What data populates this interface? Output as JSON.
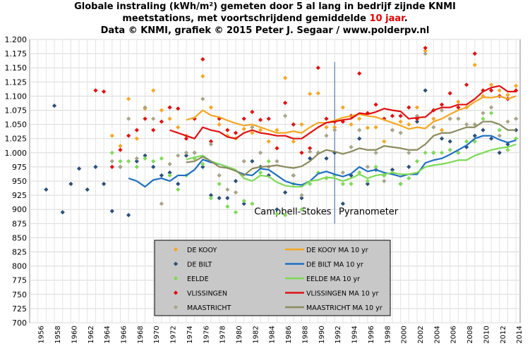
{
  "chart_data": {
    "type": "scatter",
    "title_line1": "Globale instraling (kWh/m²) gemeten door 5 al lang in bedrijf zijnde KNMI",
    "title_line2": "meetstations, met voortschrijdend gemiddelde",
    "title_line2_highlight": "10 jaar",
    "title_line2_end": ".",
    "title_line3": "Data © KNMI, grafiek © 2015 Peter J. Segaar / www.polderpv.nl",
    "xlim": [
      1955,
      2014.5
    ],
    "ylim": [
      700,
      1200
    ],
    "xticks": [
      "1956",
      "1958",
      "1960",
      "1962",
      "1964",
      "1966",
      "1968",
      "1970",
      "1972",
      "1974",
      "1976",
      "1978",
      "1980",
      "1982",
      "1984",
      "1986",
      "1988",
      "1990",
      "1992",
      "1994",
      "1996",
      "1998",
      "2000",
      "2002",
      "2004",
      "2006",
      "2008",
      "2010",
      "2012",
      "2014"
    ],
    "yticks": [
      "700",
      "725",
      "750",
      "775",
      "800",
      "825",
      "850",
      "875",
      "900",
      "925",
      "950",
      "975",
      "1.000",
      "1.025",
      "1.050",
      "1.075",
      "1.100",
      "1.125",
      "1.150",
      "1.175",
      "1.200"
    ],
    "grid": true,
    "divider_year": 1992,
    "annotations": [
      {
        "text": "Campbell-Stokes",
        "x": 1991.6,
        "y": 891
      },
      {
        "text": "Pyranometer",
        "x": 1992.5,
        "y": 891
      }
    ],
    "legend_position": "bottom-center",
    "series": [
      {
        "name": "DE KOOY",
        "kind": "points",
        "color": "#f5a623",
        "x": [
          1965,
          1966,
          1967,
          1968,
          1969,
          1970,
          1971,
          1972,
          1973,
          1974,
          1975,
          1976,
          1977,
          1978,
          1979,
          1980,
          1981,
          1982,
          1983,
          1984,
          1985,
          1986,
          1987,
          1988,
          1989,
          1990,
          1991,
          1992,
          1993,
          1994,
          1995,
          1996,
          1997,
          1998,
          1999,
          2000,
          2001,
          2002,
          2003,
          2004,
          2005,
          2006,
          2007,
          2008,
          2009,
          2010,
          2011,
          2012,
          2013,
          2014
        ],
        "y": [
          1030,
          1012,
          1095,
          1025,
          1078,
          1110,
          1075,
          1060,
          1045,
          1030,
          1060,
          1135,
          1080,
          1050,
          1030,
          1025,
          1042,
          1035,
          1040,
          1020,
          1040,
          1132,
          1020,
          1050,
          1104,
          1105,
          1045,
          1045,
          1080,
          1050,
          1060,
          1044,
          1045,
          1020,
          1040,
          1055,
          1050,
          1080,
          1180,
          1060,
          1040,
          1060,
          1090,
          1080,
          1155,
          1100,
          1120,
          1110,
          1102,
          1118
        ]
      },
      {
        "name": "DE BILT",
        "kind": "points",
        "color": "#2b4f7a",
        "x": [
          1957,
          1958,
          1959,
          1960,
          1961,
          1962,
          1963,
          1964,
          1965,
          1966,
          1967,
          1968,
          1969,
          1970,
          1971,
          1972,
          1973,
          1974,
          1975,
          1976,
          1977,
          1978,
          1979,
          1980,
          1981,
          1982,
          1983,
          1984,
          1985,
          1986,
          1987,
          1988,
          1989,
          1990,
          1991,
          1992,
          1993,
          1994,
          1995,
          1996,
          1997,
          1998,
          1999,
          2000,
          2001,
          2002,
          2003,
          2004,
          2005,
          2006,
          2007,
          2008,
          2009,
          2010,
          2011,
          2012,
          2013,
          2014
        ],
        "y": [
          935,
          1083,
          895,
          945,
          972,
          935,
          975,
          945,
          897,
          975,
          890,
          985,
          995,
          975,
          960,
          965,
          945,
          995,
          1000,
          975,
          925,
          920,
          920,
          950,
          910,
          985,
          975,
          960,
          900,
          930,
          960,
          920,
          990,
          1000,
          990,
          1000,
          910,
          960,
          1025,
          945,
          970,
          960,
          970,
          945,
          975,
          1055,
          1110,
          1000,
          1025,
          1020,
          1000,
          1010,
          1030,
          1040,
          1025,
          1000,
          1015,
          1040
        ]
      },
      {
        "name": "EELDE",
        "kind": "points",
        "color": "#7ed957",
        "x": [
          1965,
          1966,
          1967,
          1968,
          1969,
          1970,
          1971,
          1972,
          1973,
          1974,
          1975,
          1976,
          1977,
          1978,
          1979,
          1980,
          1981,
          1982,
          1983,
          1984,
          1985,
          1986,
          1987,
          1988,
          1989,
          1990,
          1991,
          1992,
          1993,
          1994,
          1995,
          1996,
          1997,
          1998,
          1999,
          2000,
          2001,
          2002,
          2003,
          2004,
          2005,
          2006,
          2007,
          2008,
          2009,
          2010,
          2011,
          2012,
          2013,
          2014
        ],
        "y": [
          1000,
          985,
          985,
          975,
          990,
          985,
          990,
          960,
          935,
          960,
          990,
          980,
          920,
          945,
          905,
          895,
          915,
          910,
          965,
          985,
          892,
          890,
          945,
          900,
          945,
          965,
          955,
          960,
          945,
          945,
          965,
          950,
          975,
          960,
          965,
          945,
          955,
          985,
          1000,
          1000,
          1000,
          1005,
          1000,
          1020,
          1020,
          1060,
          1070,
          1040,
          1005,
          1025
        ]
      },
      {
        "name": "VLISSINGEN",
        "kind": "points",
        "color": "#e01010",
        "x": [
          1963,
          1964,
          1965,
          1966,
          1967,
          1968,
          1969,
          1970,
          1971,
          1972,
          1973,
          1974,
          1975,
          1976,
          1977,
          1978,
          1979,
          1980,
          1981,
          1982,
          1983,
          1984,
          1985,
          1986,
          1987,
          1988,
          1989,
          1990,
          1991,
          1992,
          1993,
          1994,
          1995,
          1996,
          1997,
          1998,
          1999,
          2000,
          2001,
          2002,
          2003,
          2004,
          2005,
          2006,
          2007,
          2008,
          2009,
          2010,
          2011,
          2012,
          2013,
          2014
        ],
        "y": [
          1110,
          1108,
          975,
          1005,
          1030,
          1040,
          1060,
          1040,
          1055,
          1080,
          1078,
          1025,
          1060,
          1165,
          1020,
          1060,
          1040,
          1035,
          1060,
          1072,
          1058,
          1060,
          1008,
          1088,
          1050,
          1000,
          1008,
          1150,
          1060,
          1055,
          1055,
          1065,
          1140,
          1070,
          1085,
          1060,
          1065,
          1065,
          1080,
          1060,
          1185,
          1075,
          1085,
          1105,
          1080,
          1120,
          1175,
          1110,
          1110,
          1100,
          1095,
          1110
        ]
      },
      {
        "name": "MAASTRICHT",
        "kind": "points",
        "color": "#a8a488",
        "x": [
          1965,
          1966,
          1967,
          1968,
          1969,
          1970,
          1971,
          1972,
          1973,
          1974,
          1975,
          1976,
          1977,
          1978,
          1979,
          1980,
          1981,
          1982,
          1983,
          1984,
          1985,
          1986,
          1987,
          1988,
          1989,
          1990,
          1991,
          1992,
          1993,
          1994,
          1995,
          1996,
          1997,
          1998,
          1999,
          2000,
          2001,
          2002,
          2003,
          2004,
          2005,
          2006,
          2007,
          2008,
          2009,
          2010,
          2011,
          2012,
          2013,
          2014
        ],
        "y": [
          985,
          975,
          1060,
          990,
          1080,
          1060,
          910,
          980,
          995,
          1000,
          1000,
          1095,
          1015,
          960,
          935,
          930,
          985,
          1045,
          1000,
          975,
          985,
          1065,
          960,
          925,
          1002,
          1000,
          1030,
          1040,
          965,
          1010,
          1040,
          975,
          1000,
          950,
          1040,
          1035,
          1000,
          1065,
          1175,
          1045,
          1075,
          1060,
          1060,
          1050,
          1050,
          1070,
          1080,
          1030,
          1055,
          1060
        ]
      },
      {
        "name": "DE KOOY MA 10 yr",
        "kind": "line",
        "color": "#f5a623",
        "x": [
          1974,
          1975,
          1976,
          1977,
          1978,
          1979,
          1980,
          1981,
          1982,
          1983,
          1984,
          1985,
          1986,
          1987,
          1988,
          1989,
          1990,
          1991,
          1992,
          1993,
          1994,
          1995,
          1996,
          1997,
          1998,
          1999,
          2000,
          2001,
          2002,
          2003,
          2004,
          2005,
          2006,
          2007,
          2008,
          2009,
          2010,
          2011,
          2012,
          2013,
          2014
        ],
        "y": [
          1058,
          1062,
          1075,
          1066,
          1063,
          1057,
          1052,
          1048,
          1050,
          1045,
          1040,
          1035,
          1035,
          1038,
          1035,
          1045,
          1053,
          1053,
          1057,
          1062,
          1065,
          1068,
          1065,
          1063,
          1058,
          1053,
          1048,
          1042,
          1045,
          1043,
          1055,
          1060,
          1068,
          1075,
          1080,
          1090,
          1098,
          1097,
          1100,
          1095,
          1100
        ]
      },
      {
        "name": "DE BILT MA 10 yr",
        "kind": "line",
        "color": "#1f6fc0",
        "x": [
          1967,
          1968,
          1969,
          1970,
          1971,
          1972,
          1973,
          1974,
          1975,
          1976,
          1977,
          1978,
          1979,
          1980,
          1981,
          1982,
          1983,
          1984,
          1985,
          1986,
          1987,
          1988,
          1989,
          1990,
          1991,
          1992,
          1993,
          1994,
          1995,
          1996,
          1997,
          1998,
          1999,
          2000,
          2001,
          2002,
          2003,
          2004,
          2005,
          2006,
          2007,
          2008,
          2009,
          2010,
          2011,
          2012,
          2013,
          2014
        ],
        "y": [
          955,
          950,
          940,
          952,
          955,
          950,
          960,
          960,
          970,
          988,
          983,
          980,
          975,
          968,
          962,
          960,
          972,
          970,
          960,
          950,
          945,
          943,
          950,
          963,
          967,
          962,
          958,
          963,
          975,
          967,
          970,
          965,
          962,
          958,
          962,
          962,
          982,
          987,
          990,
          997,
          1005,
          1013,
          1025,
          1030,
          1030,
          1023,
          1018,
          1022
        ]
      },
      {
        "name": "EELDE MA 10 yr",
        "kind": "line",
        "color": "#7ed957",
        "x": [
          1974,
          1975,
          1976,
          1977,
          1978,
          1979,
          1980,
          1981,
          1982,
          1983,
          1984,
          1985,
          1986,
          1987,
          1988,
          1989,
          1990,
          1991,
          1992,
          1993,
          1994,
          1995,
          1996,
          1997,
          1998,
          1999,
          2000,
          2001,
          2002,
          2003,
          2004,
          2005,
          2006,
          2007,
          2008,
          2009,
          2010,
          2011,
          2012,
          2013,
          2014
        ],
        "y": [
          988,
          992,
          995,
          985,
          980,
          975,
          970,
          955,
          950,
          960,
          958,
          948,
          942,
          940,
          940,
          950,
          952,
          957,
          955,
          950,
          955,
          962,
          955,
          960,
          962,
          965,
          962,
          962,
          965,
          975,
          978,
          980,
          983,
          987,
          987,
          995,
          1000,
          1005,
          1008,
          1010,
          1015
        ]
      },
      {
        "name": "VLISSINGEN MA 10 yr",
        "kind": "line",
        "color": "#e01010",
        "x": [
          1972,
          1973,
          1974,
          1975,
          1976,
          1977,
          1978,
          1979,
          1980,
          1981,
          1982,
          1983,
          1984,
          1985,
          1986,
          1987,
          1988,
          1989,
          1990,
          1991,
          1992,
          1993,
          1994,
          1995,
          1996,
          1997,
          1998,
          1999,
          2000,
          2001,
          2002,
          2003,
          2004,
          2005,
          2006,
          2007,
          2008,
          2009,
          2010,
          2011,
          2012,
          2013,
          2014
        ],
        "y": [
          1040,
          1035,
          1030,
          1025,
          1045,
          1040,
          1037,
          1028,
          1025,
          1035,
          1040,
          1035,
          1033,
          1030,
          1030,
          1025,
          1025,
          1035,
          1045,
          1053,
          1055,
          1058,
          1060,
          1070,
          1068,
          1072,
          1078,
          1075,
          1073,
          1060,
          1062,
          1063,
          1075,
          1080,
          1080,
          1085,
          1085,
          1095,
          1108,
          1115,
          1118,
          1108,
          1108
        ]
      },
      {
        "name": "MAASTRICHT MA 10 yr",
        "kind": "line",
        "color": "#8b8b5e",
        "x": [
          1974,
          1975,
          1976,
          1977,
          1978,
          1979,
          1980,
          1981,
          1982,
          1983,
          1984,
          1985,
          1986,
          1987,
          1988,
          1989,
          1990,
          1991,
          1992,
          1993,
          1994,
          1995,
          1996,
          1997,
          1998,
          1999,
          2000,
          2001,
          2002,
          2003,
          2004,
          2005,
          2006,
          2007,
          2008,
          2009,
          2010,
          2011,
          2012,
          2013,
          2014
        ],
        "y": [
          983,
          985,
          993,
          985,
          975,
          973,
          968,
          960,
          972,
          975,
          976,
          978,
          975,
          973,
          976,
          985,
          998,
          1005,
          1002,
          998,
          1002,
          1008,
          1005,
          1005,
          1012,
          1010,
          1008,
          1005,
          1005,
          1015,
          1030,
          1035,
          1035,
          1040,
          1045,
          1045,
          1055,
          1055,
          1050,
          1040,
          1040
        ]
      }
    ]
  }
}
